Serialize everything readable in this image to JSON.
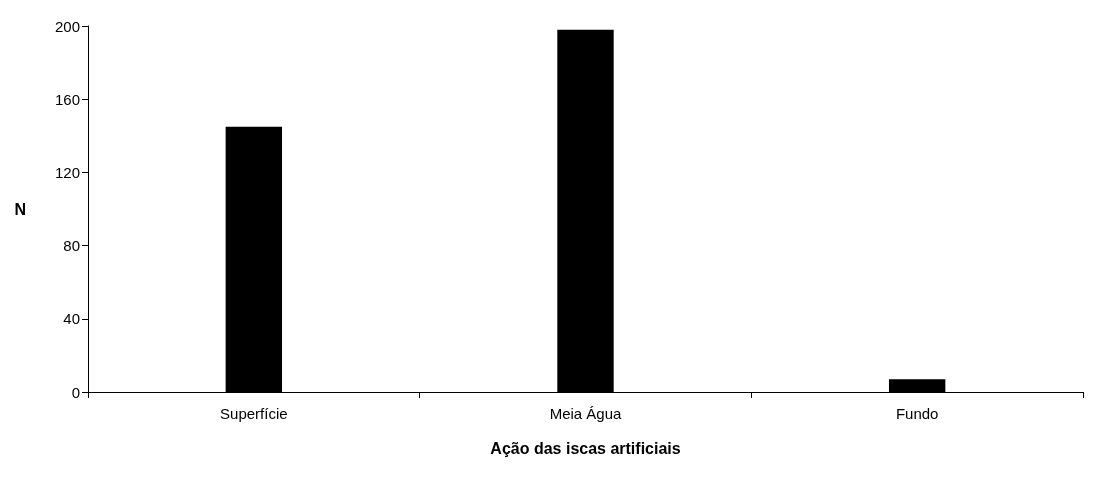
{
  "chart_data": {
    "type": "bar",
    "xlabel": "Ação das iscas artificiais",
    "ylabel": "N",
    "categories": [
      "Superfície",
      "Meia Água",
      "Fundo"
    ],
    "values": [
      145,
      198,
      7
    ],
    "color": "#000000",
    "ylim": [
      0,
      200
    ],
    "yticks": [
      0,
      40,
      80,
      120,
      160,
      200
    ],
    "grid": false
  }
}
